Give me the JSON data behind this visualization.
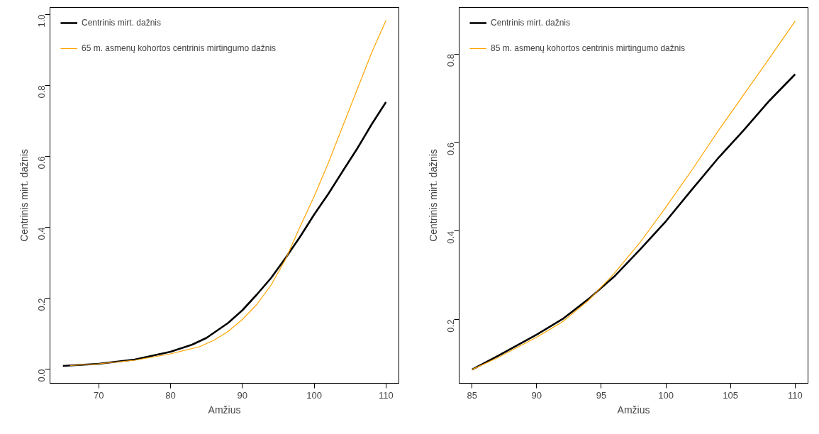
{
  "chart_data": [
    {
      "type": "line",
      "xlabel": "Amžius",
      "ylabel": "Centrinis mirt. dažnis",
      "xlim": [
        63.2,
        111.8
      ],
      "ylim": [
        -0.04,
        1.02
      ],
      "xticks": [
        70,
        80,
        90,
        100,
        110
      ],
      "yticks": [
        {
          "value": 0,
          "label": "0.0"
        },
        0.2,
        0.4,
        0.6,
        0.8,
        {
          "value": 1,
          "label": "1.0"
        }
      ],
      "grid": false,
      "legend": "top left",
      "line_style": "solid",
      "marker": "none",
      "series": [
        {
          "name": "Centrinis mirt. dažnis",
          "color": "#000000",
          "x": [
            65,
            70,
            75,
            80,
            83,
            85,
            88,
            90,
            92,
            94,
            96,
            98,
            100,
            102,
            104,
            106,
            108,
            110
          ],
          "values": [
            0.009,
            0.015,
            0.027,
            0.049,
            0.069,
            0.088,
            0.13,
            0.166,
            0.21,
            0.257,
            0.313,
            0.372,
            0.436,
            0.495,
            0.559,
            0.622,
            0.69,
            0.753
          ]
        },
        {
          "name": "65 m. asmenų kohortos centrinis mirtingumo dažnis",
          "color": "#ffa500",
          "x": [
            66,
            70,
            75,
            80,
            84,
            86,
            88,
            90,
            92,
            94,
            96,
            98,
            100,
            102,
            104,
            106,
            108,
            110
          ],
          "values": [
            0.01,
            0.015,
            0.025,
            0.043,
            0.063,
            0.081,
            0.106,
            0.14,
            0.182,
            0.237,
            0.309,
            0.4,
            0.487,
            0.583,
            0.686,
            0.789,
            0.892,
            0.983
          ]
        }
      ]
    },
    {
      "type": "line",
      "xlabel": "Amžius",
      "ylabel": "Centrinis mirt. dažnis",
      "xlim": [
        84,
        111
      ],
      "ylim": [
        0.056,
        0.905
      ],
      "xticks": [
        85,
        90,
        95,
        100,
        105,
        110
      ],
      "yticks": [
        0.2,
        0.4,
        0.6,
        0.8
      ],
      "grid": false,
      "legend": "top left",
      "line_style": "solid",
      "marker": "none",
      "series": [
        {
          "name": "Centrinis mirt. dažnis",
          "color": "#000000",
          "x": [
            85,
            87,
            90,
            92,
            94,
            96,
            98,
            100,
            102,
            104,
            106,
            108,
            110
          ],
          "values": [
            0.087,
            0.118,
            0.166,
            0.201,
            0.246,
            0.297,
            0.358,
            0.422,
            0.493,
            0.563,
            0.627,
            0.694,
            0.754
          ]
        },
        {
          "name": "85 m. asmenų kohortos centrinis mirtingumo dažnis",
          "color": "#ffa500",
          "x": [
            85,
            87,
            90,
            92,
            94,
            96,
            98,
            100,
            102,
            104,
            106,
            108,
            110
          ],
          "values": [
            0.087,
            0.114,
            0.16,
            0.195,
            0.243,
            0.304,
            0.374,
            0.454,
            0.537,
            0.624,
            0.707,
            0.79,
            0.874
          ]
        }
      ]
    }
  ]
}
